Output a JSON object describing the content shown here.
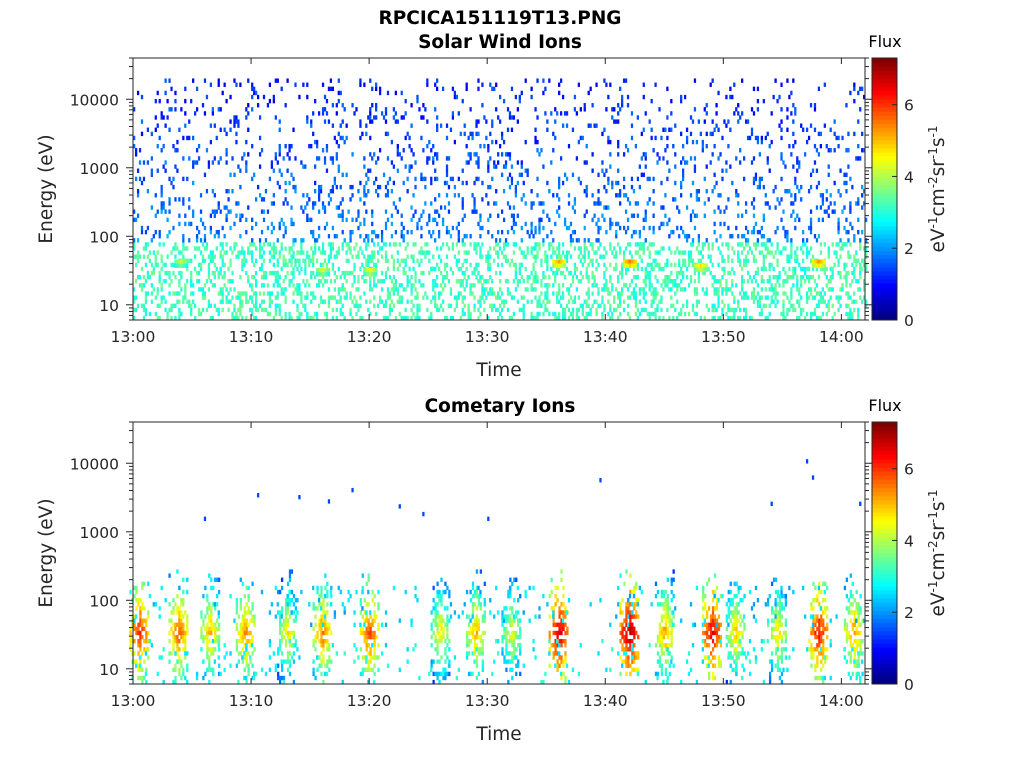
{
  "page_title": "RPCICA151119T13.PNG",
  "colorbar": {
    "label": "Flux",
    "unit_html": "eV<tspan baseline-shift='super' font-size='12'>-1</tspan>cm<tspan baseline-shift='super' font-size='12'>-2</tspan>sr<tspan baseline-shift='super' font-size='12'>-1</tspan>s<tspan baseline-shift='super' font-size='12'>-1</tspan>",
    "range": [
      0,
      7.3
    ],
    "ticks": [
      "0",
      "2",
      "4",
      "6"
    ],
    "colormap": "jet"
  },
  "chart_data": [
    {
      "type": "heatmap",
      "title": "Solar Wind Ions",
      "xlabel": "Time",
      "ylabel": "Energy (eV)",
      "x_ticks": [
        "13:00",
        "13:10",
        "13:20",
        "13:30",
        "13:40",
        "13:50",
        "14:00"
      ],
      "y_ticks": [
        "10",
        "100",
        "1000",
        "10000"
      ],
      "y_scale": "log",
      "xlim": [
        "13:00",
        "14:02"
      ],
      "ylim": [
        6,
        40000
      ],
      "values_description_free": true,
      "hotspots": [
        {
          "time": "13:36",
          "energy": 40,
          "flux": 5.2
        },
        {
          "time": "13:42",
          "energy": 40,
          "flux": 5.5
        },
        {
          "time": "13:48",
          "energy": 35,
          "flux": 4.8
        },
        {
          "time": "13:58",
          "energy": 40,
          "flux": 5.3
        },
        {
          "time": "13:20",
          "energy": 30,
          "flux": 4.5
        },
        {
          "time": "13:16",
          "energy": 30,
          "flux": 4.3
        },
        {
          "time": "13:04",
          "energy": 40,
          "flux": 4.2
        }
      ],
      "low_energy_band": {
        "energy_range": [
          6,
          80
        ],
        "flux_typical": 3.2
      },
      "high_energy_scatter": {
        "energy_range": [
          80,
          20000
        ],
        "flux_typical": 1.5
      },
      "seed": 11
    },
    {
      "type": "heatmap",
      "title": "Cometary Ions",
      "xlabel": "Time",
      "ylabel": "Energy (eV)",
      "x_ticks": [
        "13:00",
        "13:10",
        "13:20",
        "13:30",
        "13:40",
        "13:50",
        "14:00"
      ],
      "y_ticks": [
        "10",
        "100",
        "1000",
        "10000"
      ],
      "y_scale": "log",
      "xlim": [
        "13:00",
        "14:02"
      ],
      "ylim": [
        6,
        40000
      ],
      "bursts": [
        {
          "time": "13:00.5",
          "flux": 6.2
        },
        {
          "time": "13:03.8",
          "flux": 5.8
        },
        {
          "time": "13:06.5",
          "flux": 5.2
        },
        {
          "time": "13:09.5",
          "flux": 5.5
        },
        {
          "time": "13:13",
          "flux": 4.8
        },
        {
          "time": "13:16",
          "flux": 5.6
        },
        {
          "time": "13:20",
          "flux": 6.0
        },
        {
          "time": "13:26",
          "flux": 4.8
        },
        {
          "time": "13:29",
          "flux": 5.2
        },
        {
          "time": "13:32",
          "flux": 4.6
        },
        {
          "time": "13:36",
          "flux": 6.8
        },
        {
          "time": "13:42",
          "flux": 7.0
        },
        {
          "time": "13:45",
          "flux": 5.3
        },
        {
          "time": "13:49",
          "flux": 6.6
        },
        {
          "time": "13:51",
          "flux": 5.0
        },
        {
          "time": "13:54.5",
          "flux": 4.9
        },
        {
          "time": "13:58",
          "flux": 6.4
        },
        {
          "time": "14:01",
          "flux": 5.4
        }
      ],
      "isolated_points": [
        {
          "time": "13:06",
          "energy": 1450
        },
        {
          "time": "13:10.5",
          "energy": 3200
        },
        {
          "time": "13:14",
          "energy": 3000
        },
        {
          "time": "13:16.5",
          "energy": 2600
        },
        {
          "time": "13:18.5",
          "energy": 3800
        },
        {
          "time": "13:22.5",
          "energy": 2200
        },
        {
          "time": "13:24.5",
          "energy": 1700
        },
        {
          "time": "13:30",
          "energy": 1450
        },
        {
          "time": "13:39.5",
          "energy": 5300
        },
        {
          "time": "13:54",
          "energy": 2400
        },
        {
          "time": "13:57",
          "energy": 10000
        },
        {
          "time": "13:57.5",
          "energy": 5800
        },
        {
          "time": "14:01.5",
          "energy": 2400
        }
      ],
      "seed": 23
    }
  ]
}
